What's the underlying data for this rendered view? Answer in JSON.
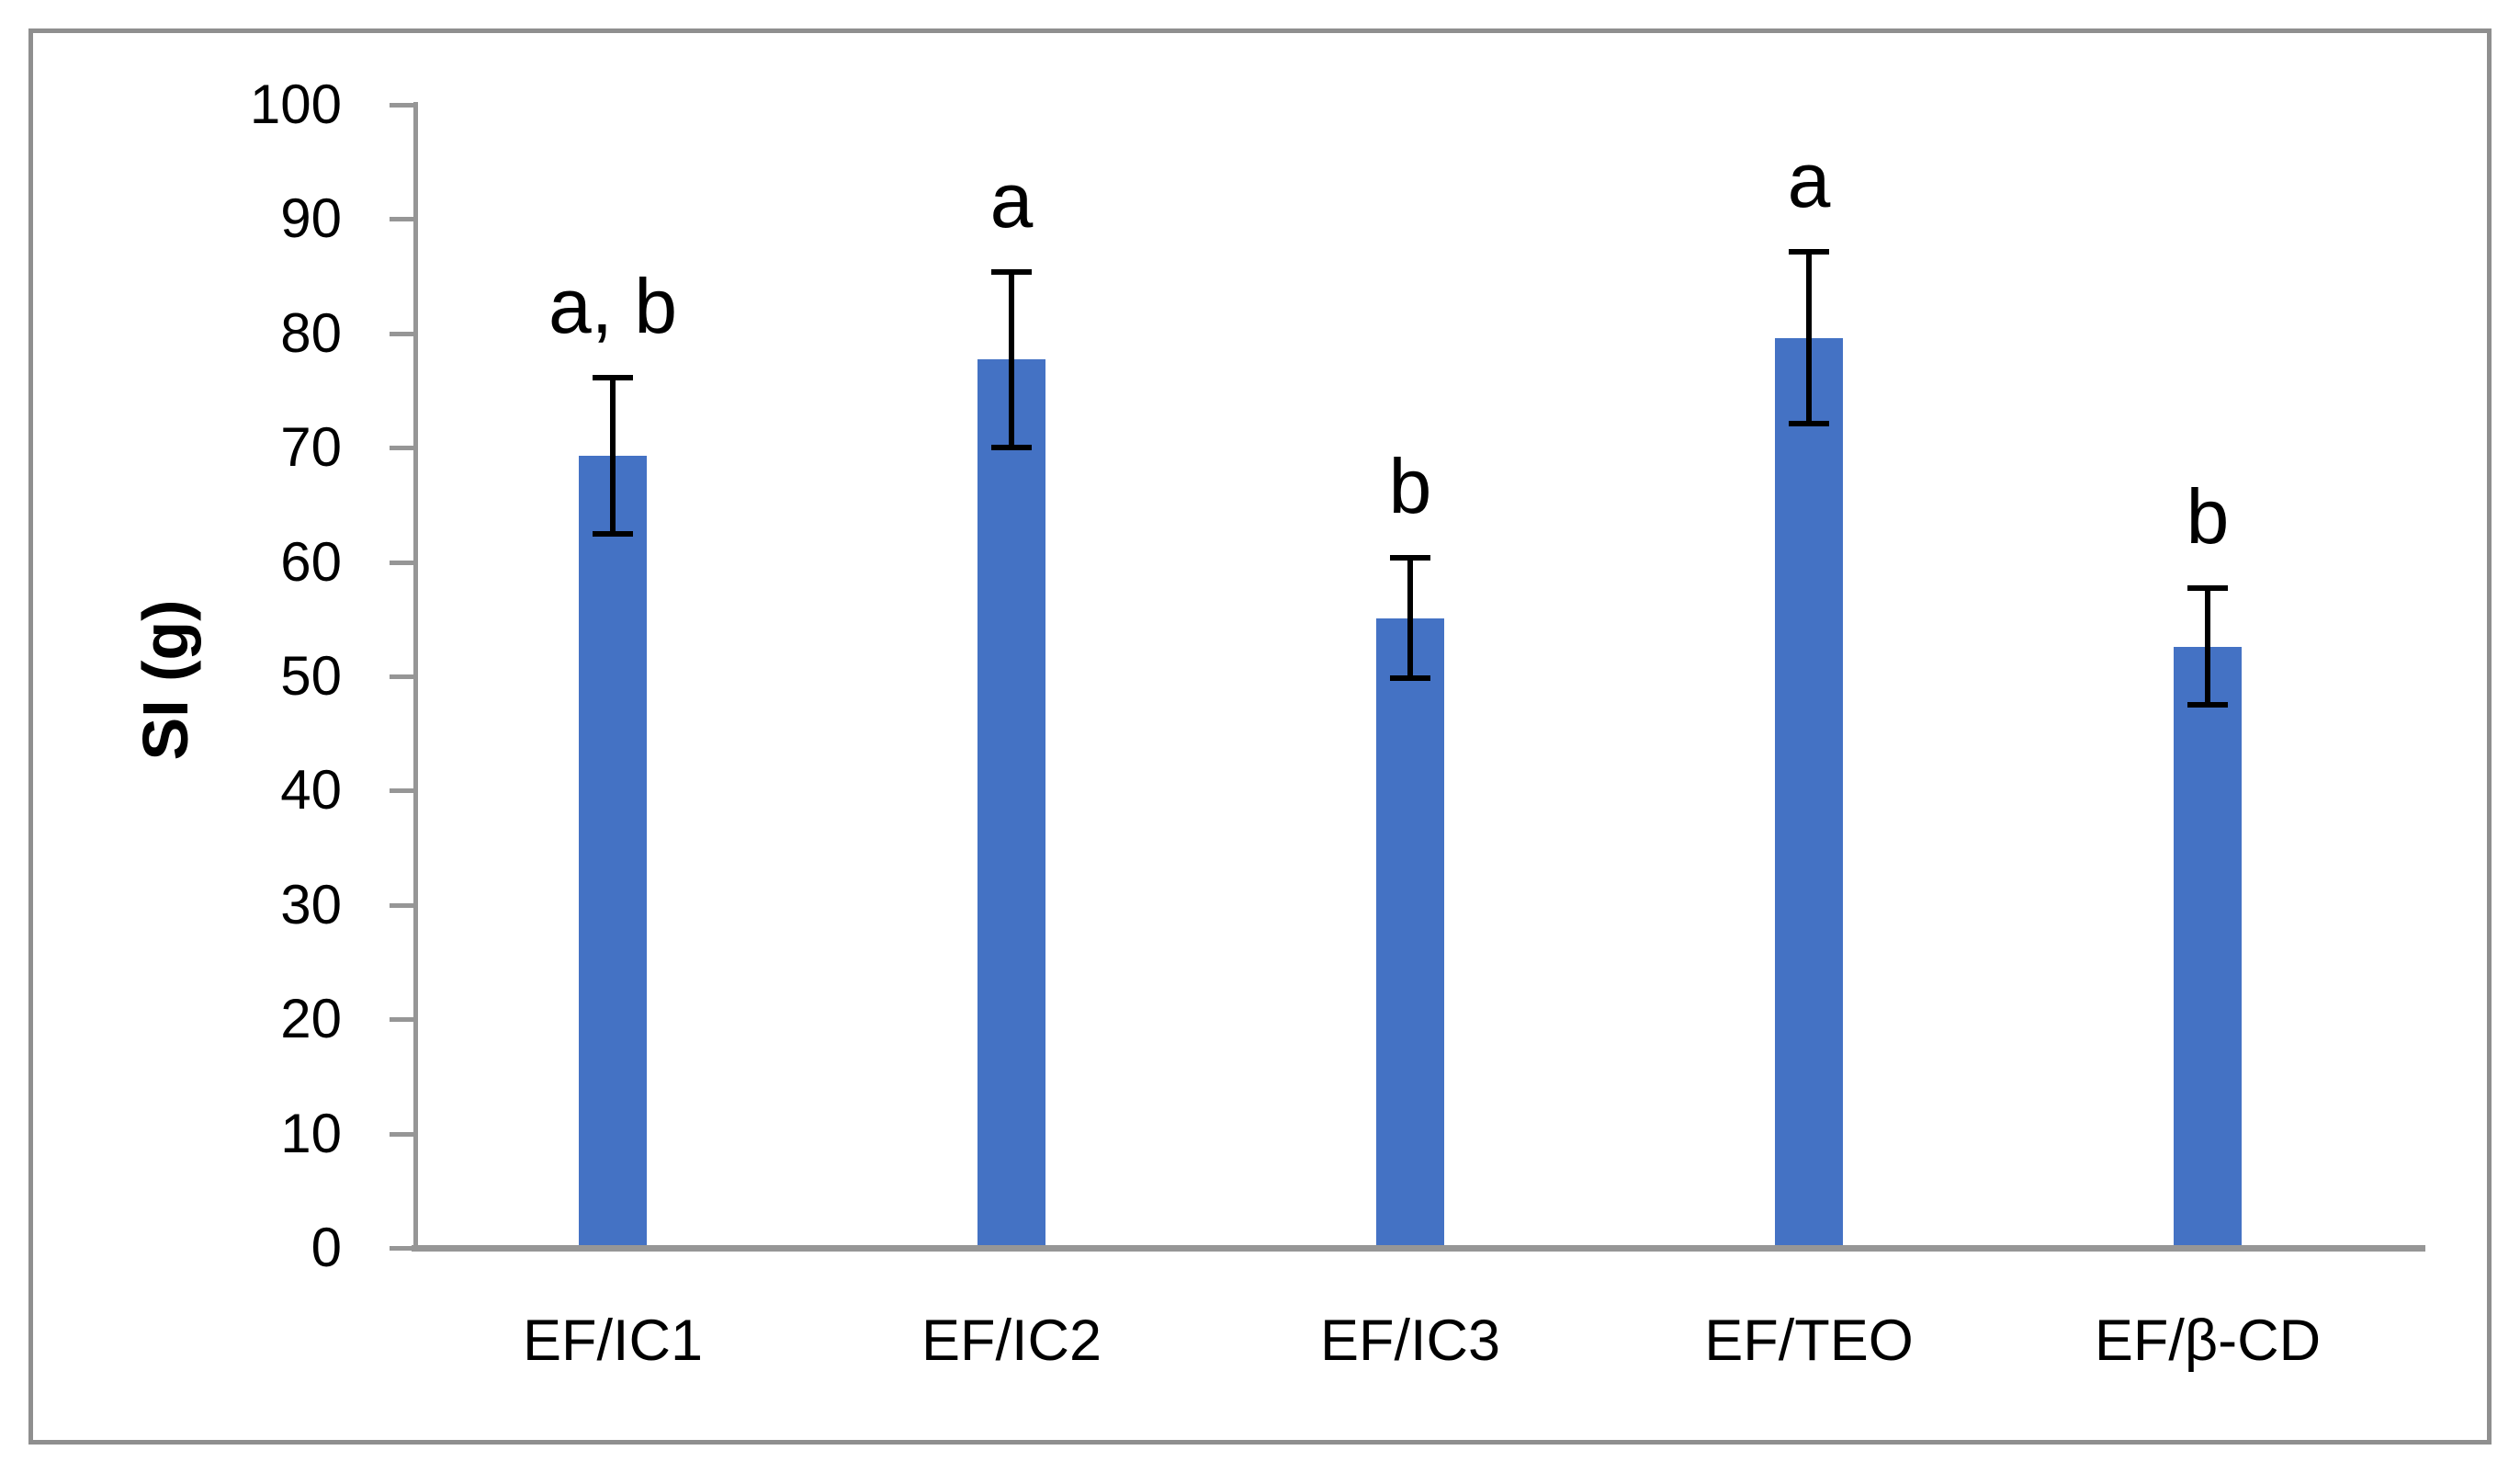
{
  "chart_data": {
    "type": "bar",
    "title": "",
    "xlabel": "",
    "ylabel": "SI (g)",
    "categories": [
      "EF/IC1",
      "EF/IC2",
      "EF/IC3",
      "EF/TEO",
      "EF/β-CD"
    ],
    "values": [
      69.3,
      77.7,
      55.1,
      79.6,
      52.6
    ],
    "error_bars": [
      6.8,
      7.7,
      5.3,
      7.5,
      5.1
    ],
    "annotations": [
      "a, b",
      "a",
      "b",
      "a",
      "b"
    ],
    "ylim": [
      0,
      100
    ],
    "yticks": [
      0,
      10,
      20,
      30,
      40,
      50,
      60,
      70,
      80,
      90,
      100
    ],
    "grid": false,
    "legend": null,
    "bar_color": "#4472C4",
    "error_color": "#000000",
    "axis_color": "#969696",
    "border_color": "#8F8F8F",
    "background_color": "#FFFFFF"
  }
}
